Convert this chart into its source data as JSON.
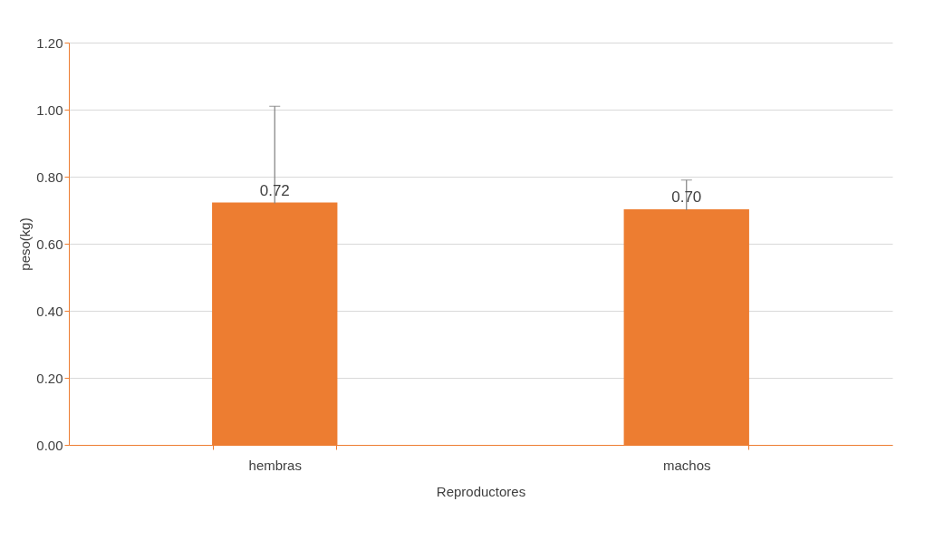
{
  "chart_data": {
    "type": "bar",
    "xlabel": "Reproductores",
    "ylabel": "peso(kg)",
    "categories": [
      "hembras",
      "machos"
    ],
    "values": [
      0.72,
      0.7
    ],
    "errors": [
      [
        0.72,
        1.01
      ],
      [
        0.7,
        0.79
      ]
    ],
    "color": "#ed7d31",
    "ylim": [
      0,
      1.2
    ],
    "yticks": [
      {
        "value": 0,
        "label": "0.00"
      },
      {
        "value": 0.2,
        "label": "0.20"
      },
      {
        "value": 0.4,
        "label": "0.40"
      },
      {
        "value": 0.6,
        "label": "0.60"
      },
      {
        "value": 0.8,
        "label": "0.80"
      },
      {
        "value": 1.0,
        "label": "1.00"
      },
      {
        "value": 1.2,
        "label": "1.20"
      }
    ],
    "grid": "y",
    "value_labels": [
      "0.72",
      "0.70"
    ]
  }
}
